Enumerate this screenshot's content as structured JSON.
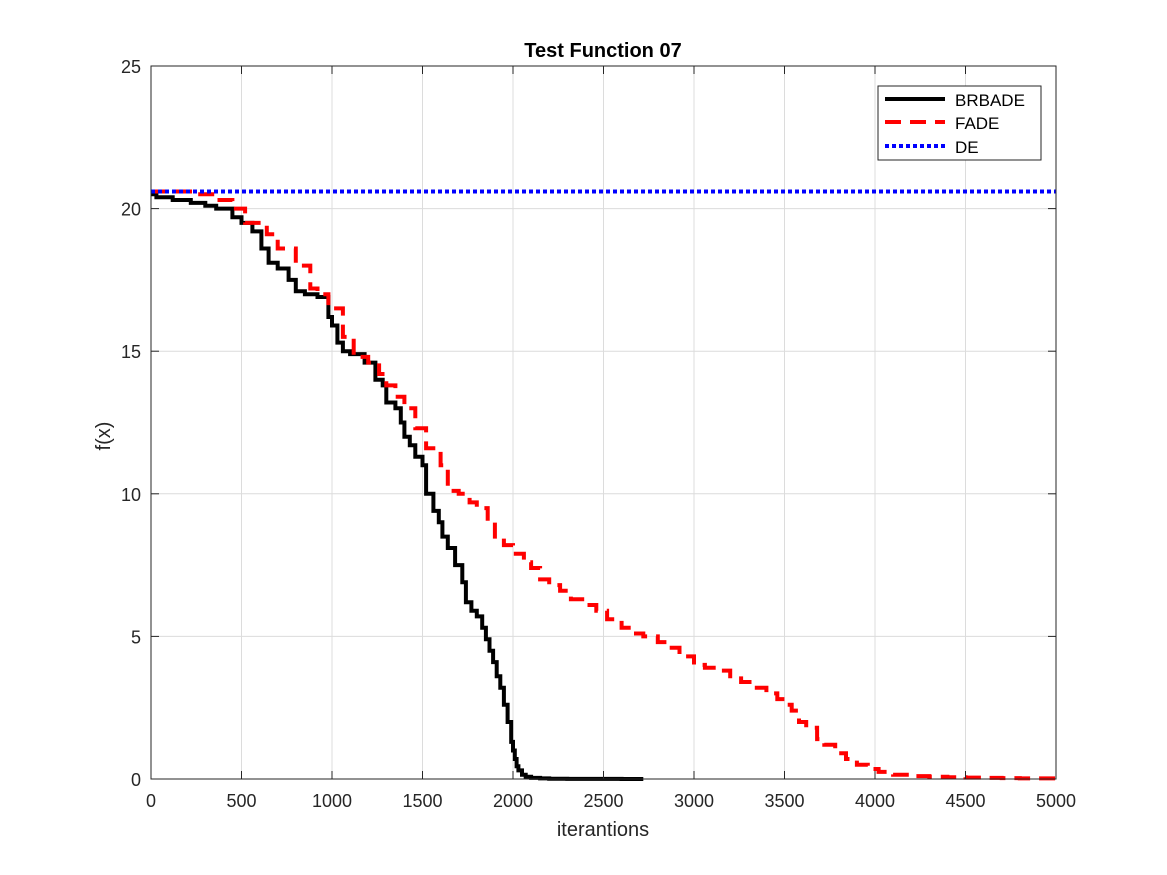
{
  "chart_data": {
    "type": "line",
    "title": "Test Function 07",
    "xlabel": "iterantions",
    "ylabel": "f(x)",
    "xlim": [
      0,
      5000
    ],
    "ylim": [
      0,
      25
    ],
    "xticks": [
      0,
      500,
      1000,
      1500,
      2000,
      2500,
      3000,
      3500,
      4000,
      4500,
      5000
    ],
    "yticks": [
      0,
      5,
      10,
      15,
      20,
      25
    ],
    "grid": true,
    "legend_position": "top-right",
    "series": [
      {
        "name": "BRBADE",
        "color": "#000000",
        "style": "solid",
        "step": true,
        "x": [
          0,
          30,
          120,
          220,
          300,
          360,
          450,
          500,
          560,
          610,
          650,
          700,
          760,
          800,
          850,
          920,
          980,
          1000,
          1030,
          1060,
          1100,
          1180,
          1240,
          1280,
          1300,
          1350,
          1380,
          1400,
          1430,
          1460,
          1500,
          1520,
          1560,
          1590,
          1610,
          1640,
          1680,
          1720,
          1740,
          1770,
          1800,
          1830,
          1850,
          1870,
          1890,
          1910,
          1930,
          1950,
          1970,
          1990,
          2000,
          2010,
          2020,
          2030,
          2050,
          2070,
          2100,
          2150,
          2200,
          2300,
          2400,
          2500,
          2600,
          2720
        ],
        "y": [
          20.5,
          20.4,
          20.3,
          20.2,
          20.1,
          20.0,
          19.7,
          19.5,
          19.2,
          18.6,
          18.1,
          17.9,
          17.5,
          17.1,
          17.0,
          16.9,
          16.2,
          15.9,
          15.3,
          15.0,
          14.9,
          14.6,
          14.0,
          13.8,
          13.2,
          13.0,
          12.5,
          12.0,
          11.7,
          11.3,
          11.0,
          10.0,
          9.4,
          9.0,
          8.5,
          8.1,
          7.5,
          6.9,
          6.2,
          5.9,
          5.7,
          5.3,
          4.9,
          4.5,
          4.1,
          3.6,
          3.2,
          2.6,
          2.0,
          1.3,
          1.0,
          0.7,
          0.45,
          0.3,
          0.15,
          0.08,
          0.04,
          0.02,
          0.01,
          0.005,
          0.003,
          0.002,
          0.001,
          0.001
        ]
      },
      {
        "name": "FADE",
        "color": "#ff0000",
        "style": "dashed",
        "step": true,
        "x": [
          0,
          100,
          250,
          350,
          450,
          520,
          640,
          700,
          800,
          880,
          920,
          980,
          1060,
          1120,
          1200,
          1260,
          1300,
          1350,
          1400,
          1460,
          1520,
          1600,
          1640,
          1700,
          1760,
          1800,
          1860,
          1900,
          1950,
          2000,
          2060,
          2100,
          2150,
          2200,
          2260,
          2320,
          2400,
          2460,
          2520,
          2600,
          2660,
          2720,
          2800,
          2860,
          2920,
          3000,
          3060,
          3120,
          3200,
          3260,
          3320,
          3400,
          3460,
          3500,
          3540,
          3580,
          3620,
          3680,
          3720,
          3780,
          3840,
          3900,
          3960,
          4020,
          4100,
          4200,
          4300,
          4400,
          4500,
          4600,
          4700,
          4800,
          4900,
          5000
        ],
        "y": [
          20.6,
          20.6,
          20.5,
          20.3,
          20.0,
          19.5,
          19.1,
          18.6,
          18.0,
          17.2,
          17.0,
          16.5,
          15.5,
          14.8,
          14.6,
          14.2,
          13.8,
          13.4,
          13.0,
          12.3,
          11.6,
          11.0,
          10.1,
          10.0,
          9.7,
          9.5,
          9.0,
          8.5,
          8.2,
          7.9,
          7.6,
          7.4,
          7.0,
          6.8,
          6.6,
          6.3,
          6.1,
          5.9,
          5.6,
          5.3,
          5.1,
          5.0,
          4.8,
          4.6,
          4.3,
          4.0,
          3.9,
          3.8,
          3.6,
          3.4,
          3.2,
          3.0,
          2.8,
          2.6,
          2.4,
          2.0,
          1.8,
          1.4,
          1.2,
          0.9,
          0.7,
          0.5,
          0.35,
          0.25,
          0.15,
          0.1,
          0.08,
          0.06,
          0.05,
          0.04,
          0.03,
          0.02,
          0.02,
          0.02
        ]
      },
      {
        "name": "DE",
        "color": "#0000ff",
        "style": "dotted",
        "step": false,
        "x": [
          0,
          5000
        ],
        "y": [
          20.6,
          20.6
        ]
      }
    ]
  }
}
